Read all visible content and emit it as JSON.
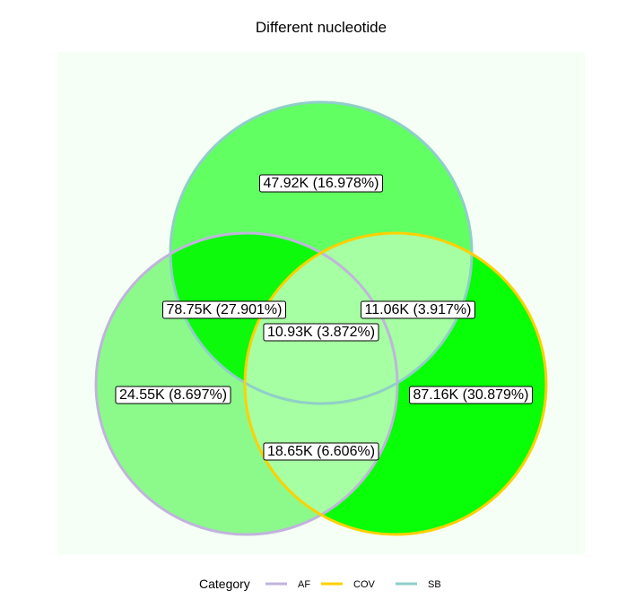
{
  "chart_data": {
    "type": "venn",
    "title": "Different nucleotide",
    "sets": [
      {
        "name": "AF",
        "color": "#c0b4dc"
      },
      {
        "name": "COV",
        "color": "#ffd000"
      },
      {
        "name": "SB",
        "color": "#8fcfc8"
      }
    ],
    "regions": [
      {
        "sets": [
          "SB"
        ],
        "value": 47920,
        "percent": 16.978,
        "label": "47.92K (16.978%)",
        "fill": "#62ff62"
      },
      {
        "sets": [
          "AF",
          "SB"
        ],
        "value": 78750,
        "percent": 27.901,
        "label": "78.75K (27.901%)",
        "fill": "#0dfa0d"
      },
      {
        "sets": [
          "COV",
          "SB"
        ],
        "value": 11060,
        "percent": 3.917,
        "label": "11.06K (3.917%)",
        "fill": "#a6ffa2"
      },
      {
        "sets": [
          "AF",
          "COV",
          "SB"
        ],
        "value": 10930,
        "percent": 3.872,
        "label": "10.93K (3.872%)",
        "fill": "#a6ffa2"
      },
      {
        "sets": [
          "AF"
        ],
        "value": 24550,
        "percent": 8.697,
        "label": "24.55K (8.697%)",
        "fill": "#8bfa8b"
      },
      {
        "sets": [
          "COV"
        ],
        "value": 87160,
        "percent": 30.879,
        "label": "87.16K (30.879%)",
        "fill": "#08ff08"
      },
      {
        "sets": [
          "AF",
          "COV"
        ],
        "value": 18650,
        "percent": 6.606,
        "label": "18.65K (6.606%)",
        "fill": "#a6ffa2"
      }
    ],
    "legend": {
      "title": "Category",
      "position": "bottom",
      "entries": [
        "AF",
        "COV",
        "SB"
      ]
    },
    "background": "#f5fff5"
  }
}
